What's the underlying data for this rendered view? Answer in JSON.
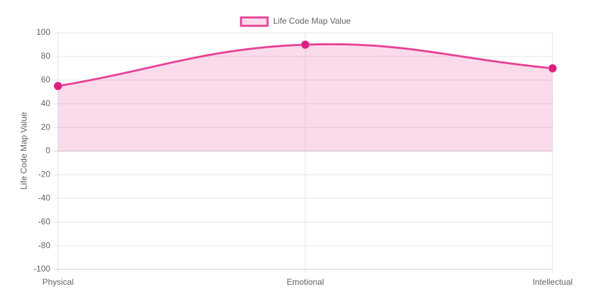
{
  "chart_data": {
    "type": "line",
    "categories": [
      "Physical",
      "Emotional",
      "Intellectual"
    ],
    "series": [
      {
        "name": "Life Code Map Value",
        "color": "#e8499a",
        "point_color": "#d8207c",
        "values": [
          55,
          90,
          70
        ]
      }
    ],
    "y_label": "Life Code Map Value",
    "ylim": [
      -100,
      100
    ],
    "yticks": [
      -100,
      -80,
      -60,
      -40,
      -20,
      0,
      20,
      40,
      60,
      80,
      100
    ],
    "grid": true,
    "fill": "origin",
    "legend": "top"
  }
}
